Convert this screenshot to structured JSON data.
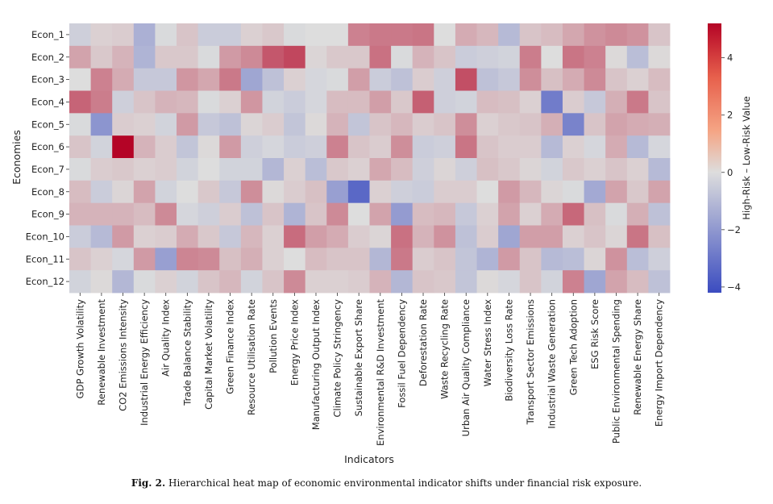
{
  "chart_data": {
    "type": "heatmap",
    "xlabel": "Indicators",
    "ylabel": "Economies",
    "colorbar_label": "High-Risk – Low-Risk Value",
    "colorbar_ticks": [
      4,
      2,
      0,
      -2,
      -4
    ],
    "vmin": -4.2,
    "vmax": 5.2,
    "rows": [
      "Econ_1",
      "Econ_2",
      "Econ_3",
      "Econ_4",
      "Econ_5",
      "Econ_6",
      "Econ_7",
      "Econ_8",
      "Econ_9",
      "Econ_10",
      "Econ_11",
      "Econ_12"
    ],
    "columns": [
      "GDP Growth Volatility",
      "Renewable Investment",
      "CO2 Emissions Intensity",
      "Industrial Energy Efficiency",
      "Air Quality Index",
      "Trade Balance Stability",
      "Capital Market Volatility",
      "Green Finance Index",
      "Resource Utilisation Rate",
      "Pollution Events",
      "Energy Price Index",
      "Manufacturing Output Index",
      "Climate Policy Stringency",
      "Sustainable Export Share",
      "Environmental R&D Investment",
      "Fossil Fuel Dependency",
      "Deforestation Rate",
      "Waste Recycling Rate",
      "Urban Air Quality Compliance",
      "Water Stress Index",
      "Biodiversity Loss Rate",
      "Transport Sector Emissions",
      "Industrial Waste Generation",
      "Green Tech Adoption",
      "ESG Risk Score",
      "Public Environmental Spending",
      "Renewable Energy Share",
      "Energy Import Dependency"
    ],
    "values": [
      [
        -0.4,
        0.3,
        0.4,
        -1.3,
        -0.1,
        0.6,
        -0.5,
        -0.5,
        0.3,
        0.5,
        -0.1,
        0.0,
        0.0,
        2.2,
        2.4,
        2.4,
        2.5,
        0.0,
        1.2,
        0.9,
        -1.0,
        0.6,
        0.8,
        1.3,
        1.8,
        2.0,
        1.8,
        0.6
      ],
      [
        1.4,
        0.5,
        1.0,
        -1.2,
        0.5,
        0.5,
        -0.1,
        1.6,
        2.0,
        3.2,
        3.6,
        0.2,
        0.5,
        0.5,
        2.6,
        -0.1,
        1.0,
        0.6,
        -0.5,
        -0.4,
        -0.3,
        2.3,
        0.0,
        2.5,
        2.2,
        0.1,
        -0.9,
        0.1
      ],
      [
        0.0,
        2.2,
        1.2,
        -0.6,
        -0.6,
        1.7,
        1.3,
        2.4,
        -1.6,
        -0.8,
        0.3,
        -0.2,
        -0.1,
        1.5,
        -0.5,
        -0.8,
        0.4,
        -0.4,
        3.4,
        -0.8,
        -0.6,
        1.9,
        0.7,
        1.2,
        2.0,
        0.6,
        0.3,
        0.8
      ],
      [
        2.9,
        2.3,
        -0.4,
        0.6,
        1.0,
        0.9,
        -0.1,
        0.3,
        1.7,
        -0.3,
        -0.5,
        -0.2,
        0.8,
        0.8,
        1.5,
        0.5,
        3.0,
        -0.4,
        -0.3,
        0.8,
        0.7,
        0.3,
        -2.8,
        0.4,
        -0.6,
        1.1,
        2.4,
        0.6
      ],
      [
        -0.1,
        -2.1,
        0.4,
        0.3,
        -0.3,
        1.6,
        -0.6,
        -0.8,
        0.2,
        0.4,
        -0.7,
        0.1,
        1.0,
        -0.7,
        0.6,
        0.9,
        0.4,
        0.6,
        1.9,
        0.3,
        0.5,
        0.6,
        1.1,
        -2.6,
        0.6,
        1.4,
        1.2,
        1.1
      ],
      [
        0.6,
        -0.3,
        5.2,
        1.0,
        0.4,
        -0.7,
        0.1,
        1.6,
        -0.4,
        -0.2,
        -0.5,
        -0.4,
        2.2,
        0.6,
        0.4,
        1.9,
        -0.5,
        -0.4,
        2.5,
        0.6,
        0.4,
        0.4,
        -1.0,
        0.3,
        -0.2,
        1.2,
        -1.0,
        -0.2
      ],
      [
        -0.1,
        0.4,
        0.5,
        0.3,
        0.4,
        -0.3,
        0.0,
        -0.3,
        -0.3,
        -1.1,
        0.3,
        -0.9,
        0.5,
        0.3,
        1.3,
        0.8,
        -0.4,
        0.2,
        -0.4,
        0.7,
        0.5,
        0.2,
        -0.3,
        0.5,
        0.3,
        0.6,
        0.3,
        -1.0
      ],
      [
        0.8,
        -0.5,
        0.2,
        1.4,
        -0.3,
        0.0,
        0.5,
        -0.6,
        1.9,
        0.1,
        0.4,
        0.7,
        -1.8,
        -3.4,
        0.3,
        -0.4,
        -0.5,
        0.4,
        0.4,
        0.0,
        1.6,
        0.9,
        0.2,
        -0.1,
        -1.5,
        1.4,
        0.5,
        1.4
      ],
      [
        1.0,
        1.0,
        1.0,
        0.8,
        2.0,
        -0.2,
        -0.4,
        0.4,
        -0.8,
        0.6,
        -1.2,
        0.6,
        2.0,
        0.0,
        1.4,
        -1.9,
        0.8,
        0.9,
        -0.6,
        0.3,
        1.4,
        0.3,
        1.2,
        2.8,
        0.7,
        -0.1,
        1.1,
        -0.8
      ],
      [
        -0.5,
        -1.0,
        1.6,
        0.3,
        0.4,
        1.2,
        0.5,
        -0.6,
        0.9,
        0.3,
        2.7,
        1.5,
        1.2,
        0.4,
        0.2,
        2.6,
        1.0,
        1.8,
        -0.8,
        0.4,
        -1.6,
        1.5,
        1.5,
        0.3,
        0.6,
        0.2,
        2.5,
        0.7
      ],
      [
        0.6,
        0.3,
        -0.2,
        1.6,
        -1.8,
        2.1,
        2.0,
        0.7,
        1.1,
        0.3,
        0.0,
        0.8,
        0.6,
        0.6,
        -1.1,
        2.4,
        0.4,
        0.6,
        -0.7,
        -1.2,
        1.6,
        0.6,
        -1.0,
        -0.9,
        0.2,
        1.8,
        -0.9,
        -0.4
      ],
      [
        -0.3,
        0.1,
        -1.1,
        -0.1,
        0.3,
        -0.3,
        0.6,
        0.9,
        -0.3,
        0.6,
        2.0,
        0.3,
        0.3,
        0.4,
        1.0,
        -1.1,
        0.6,
        0.5,
        -0.7,
        0.1,
        -0.2,
        0.6,
        -0.3,
        2.2,
        -1.6,
        1.4,
        0.8,
        -0.8
      ]
    ]
  },
  "caption": {
    "label": "Fig. 2.",
    "text": "Hierarchical heat map of economic environmental indicator shifts under financial risk exposure."
  }
}
